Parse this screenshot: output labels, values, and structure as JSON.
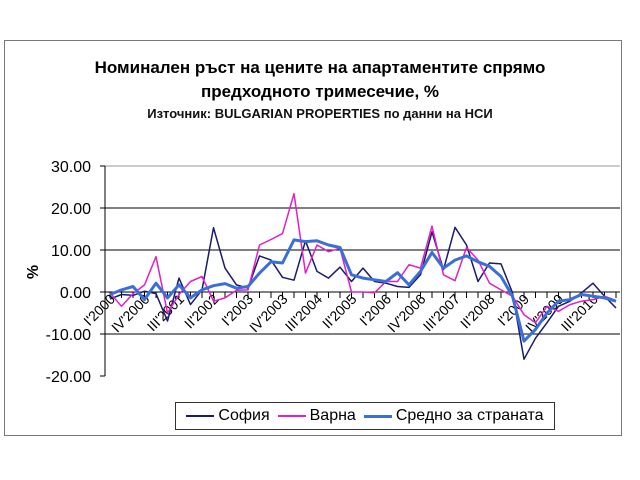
{
  "chart_data": {
    "type": "line",
    "title": "Номинален ръст на цените на апартаментите спрямо предходното тримесечие, %",
    "title_line1": "Номинален ръст на цените на апартаментите спрямо",
    "title_line2": "предходното тримесечие, %",
    "subtitle": "Източник: BULGARIAN PROPERTIES по данни на НСИ",
    "ylabel": "%",
    "xlabel": "",
    "ylim": [
      -20,
      30
    ],
    "yticks": [
      "30.00",
      "20.00",
      "10.00",
      "0.00",
      "-10.00",
      "-20.00"
    ],
    "ytick_values": [
      30,
      20,
      10,
      0,
      -10,
      -20
    ],
    "grid": true,
    "legend_position": "bottom",
    "categories": [
      "I'2000",
      "II'2000",
      "III'2000",
      "IV'2000",
      "I'2001",
      "II'2001",
      "III'2001",
      "IV'2001",
      "I'2002",
      "II'2002",
      "III'2002",
      "IV'2002",
      "I'2003",
      "II'2003",
      "III'2003",
      "IV'2003",
      "I'2004",
      "II'2004",
      "III'2004",
      "IV'2004",
      "I'2005",
      "II'2005",
      "III'2005",
      "IV'2005",
      "I'2006",
      "II'2006",
      "III'2006",
      "IV'2006",
      "I'2007",
      "II'2007",
      "III'2007",
      "IV'2007",
      "I'2008",
      "II'2008",
      "III'2008",
      "IV'2008",
      "I'2009",
      "II'2009",
      "III'2009",
      "IV'2009",
      "I'2010",
      "II'2010",
      "III'2010",
      "IV'2010",
      "I'2011"
    ],
    "xtick_labels": [
      "I'2000",
      "IV'2000",
      "III'2001",
      "II'2002",
      "I'2003",
      "IV'2003",
      "III'2004",
      "II'2005",
      "I'2006",
      "IV'2006",
      "III'2007",
      "II'2008",
      "I'2009",
      "IV'2009",
      "III'2010"
    ],
    "series": [
      {
        "name": "София",
        "color": "#1a1a6e",
        "values": [
          -1.7,
          -0.6,
          -0.8,
          0.2,
          -0.4,
          -6.9,
          3.3,
          -3.0,
          0.5,
          15.3,
          5.7,
          1.7,
          0.9,
          8.6,
          7.6,
          3.5,
          2.8,
          12.2,
          4.9,
          3.3,
          5.9,
          2.5,
          5.7,
          2.5,
          2.1,
          1.3,
          1.1,
          4.1,
          14.3,
          5.3,
          15.4,
          11.2,
          2.5,
          6.9,
          6.7,
          -0.2,
          -16.0,
          -11.0,
          -7.3,
          -3.4,
          -2.2,
          -0.2,
          2.1,
          -1.0,
          -3.8
        ]
      },
      {
        "name": "Варна",
        "color": "#e020c8",
        "values": [
          -0.2,
          -3.4,
          -0.4,
          1.7,
          8.4,
          -5.0,
          -0.6,
          2.5,
          3.7,
          -2.2,
          -1.4,
          0.4,
          0.5,
          11.2,
          12.5,
          13.9,
          23.4,
          4.5,
          11.2,
          9.6,
          10.4,
          0.0,
          0.0,
          -0.2,
          2.5,
          2.5,
          6.5,
          5.7,
          15.7,
          4.1,
          2.7,
          10.6,
          7.6,
          2.1,
          0.5,
          -1.0,
          -5.4,
          -7.3,
          -3.4,
          -4.6,
          -3.0,
          -2.2,
          -1.8,
          -1.0,
          -2.0
        ]
      },
      {
        "name": "Средно за страната",
        "color": "#3a6fd8",
        "values": [
          -0.6,
          0.5,
          1.3,
          -1.8,
          2.1,
          -1.4,
          1.7,
          -1.4,
          0.5,
          1.5,
          2.0,
          0.9,
          1.3,
          4.5,
          7.2,
          6.9,
          12.4,
          12.0,
          12.2,
          11.2,
          10.6,
          4.1,
          3.3,
          2.9,
          2.5,
          4.6,
          1.7,
          4.9,
          9.4,
          5.7,
          7.6,
          8.6,
          7.2,
          6.1,
          3.7,
          -1.0,
          -11.7,
          -8.9,
          -5.0,
          -2.2,
          -1.8,
          -0.6,
          -1.0,
          -1.4,
          -2.2
        ]
      }
    ]
  }
}
